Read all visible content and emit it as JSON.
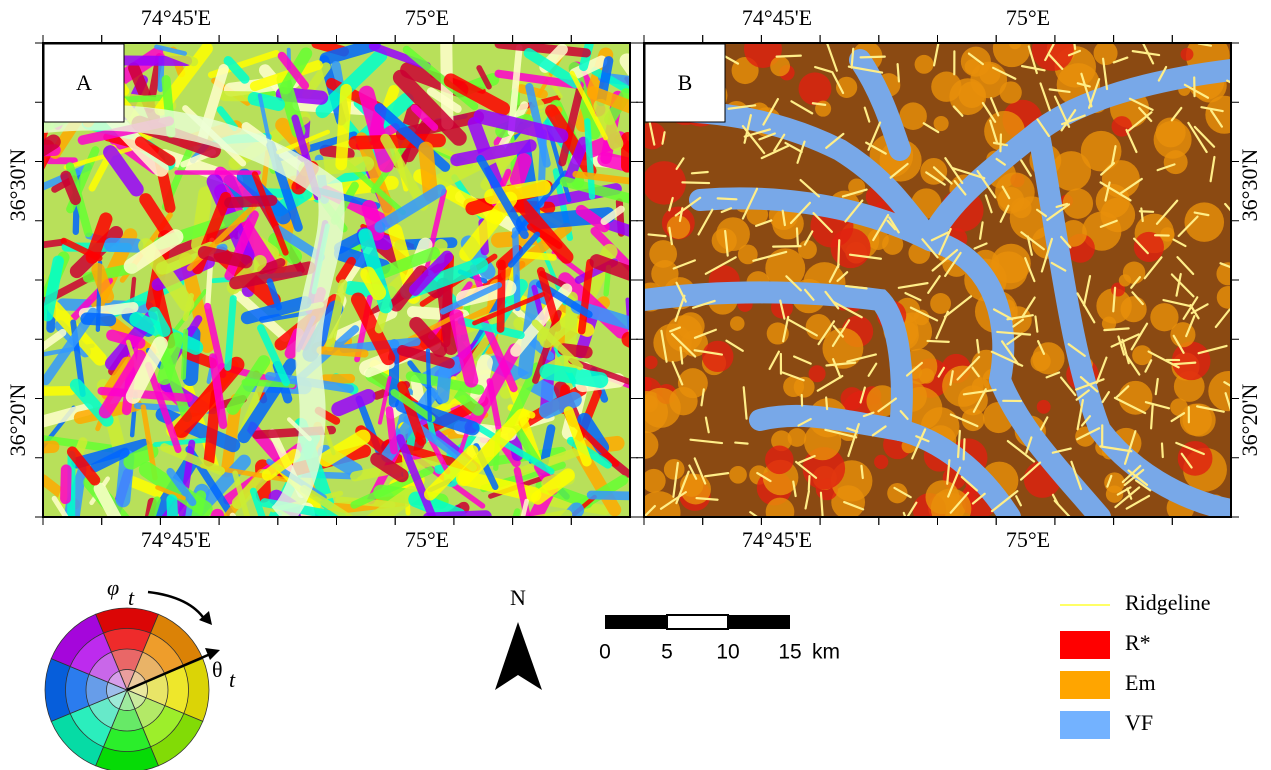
{
  "panels": [
    {
      "label": "A",
      "top_ticks": [
        "74°45'E",
        "75°E"
      ],
      "bottom_ticks": [
        "74°45'E",
        "75°E"
      ],
      "side_ticks": [
        "36°30'N",
        "36°20'N"
      ]
    },
    {
      "label": "B",
      "top_ticks": [
        "74°45'E",
        "75°E"
      ],
      "bottom_ticks": [
        "74°45'E",
        "75°E"
      ],
      "side_ticks": [
        "36°30'N",
        "36°20'N"
      ]
    }
  ],
  "color_wheel": {
    "phi": "φ",
    "phi_sub": "t",
    "theta": "θ",
    "theta_sub": "t"
  },
  "north_arrow": {
    "label": "N"
  },
  "scale_bar": {
    "labels": [
      "0",
      "5",
      "10",
      "15"
    ],
    "unit": "km"
  },
  "legend": {
    "items": [
      {
        "label": "Ridgeline",
        "color": "#ffff66"
      },
      {
        "label": "R*",
        "color": "#ff0000"
      },
      {
        "label": "Em",
        "color": "#ffa500"
      },
      {
        "label": "VF",
        "color": "#73b2ff"
      }
    ]
  }
}
